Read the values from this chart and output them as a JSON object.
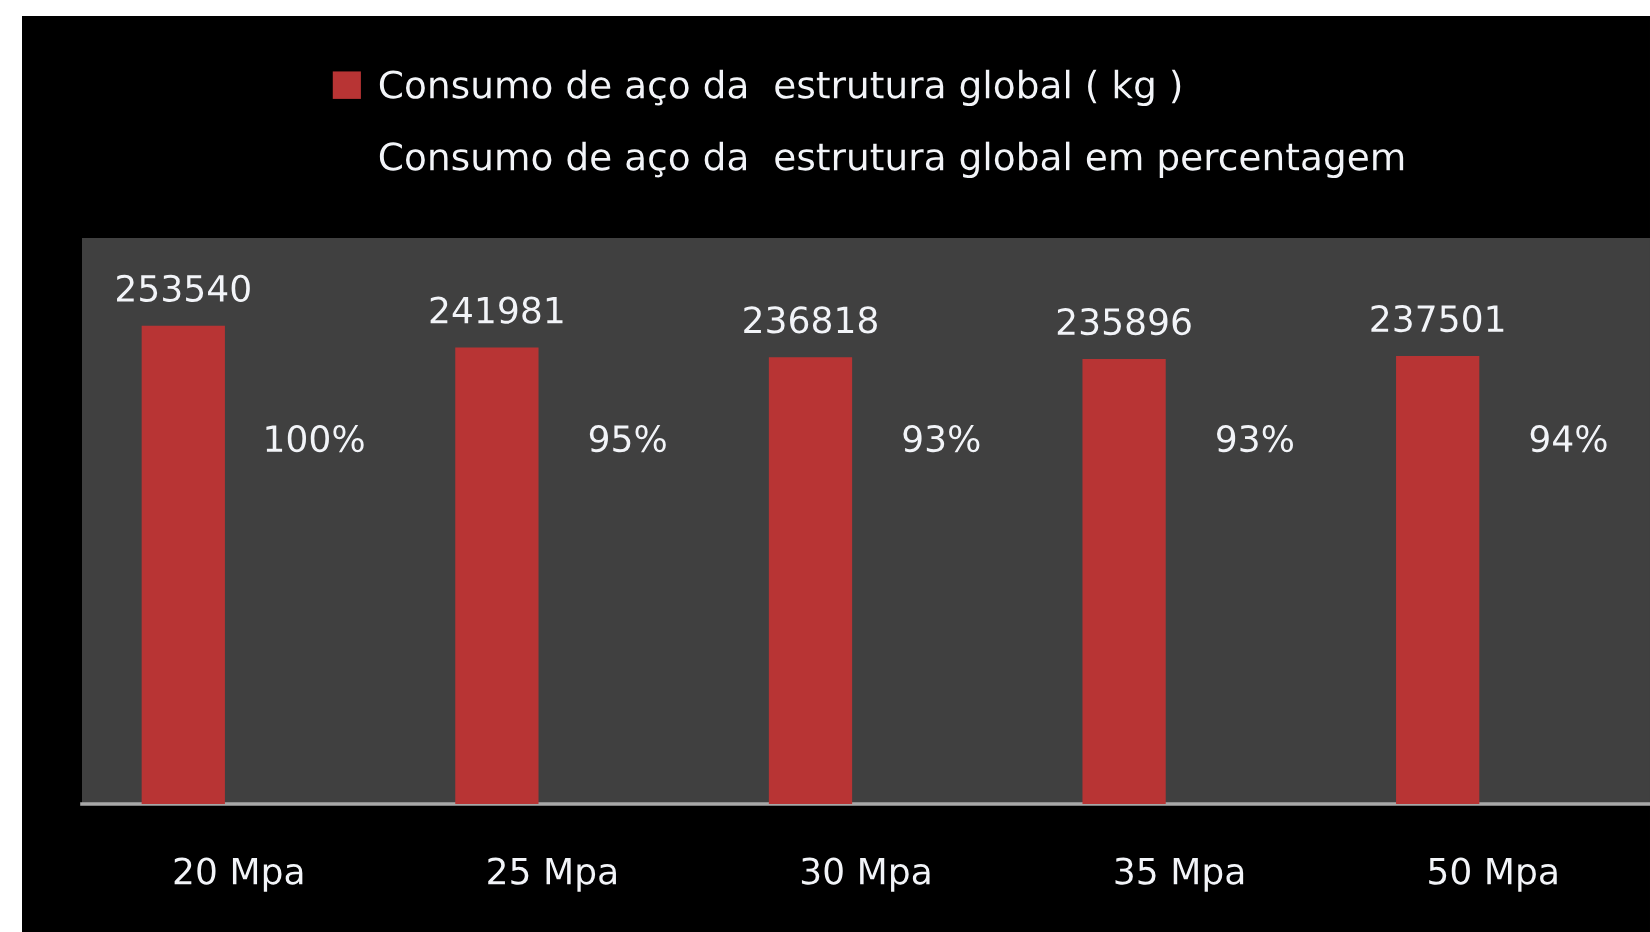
{
  "chart_data": {
    "type": "bar",
    "categories": [
      "20 Mpa",
      "25 Mpa",
      "30 Mpa",
      "35 Mpa",
      "50 Mpa"
    ],
    "series": [
      {
        "name": "Consumo de aço da  estrutura global ( kg )",
        "color": "#b83434",
        "values": [
          253540,
          241981,
          236818,
          235896,
          237501
        ]
      },
      {
        "name": "Consumo de aço da  estrutura global em percentagem",
        "values": [
          null,
          null,
          null,
          null,
          null
        ]
      }
    ],
    "annotations": [
      "100%",
      "95%",
      "93%",
      "93%",
      "94%"
    ],
    "ylim": [
      0,
      300000
    ],
    "tick_labels": "x",
    "data_labels": true,
    "legend": "top"
  }
}
